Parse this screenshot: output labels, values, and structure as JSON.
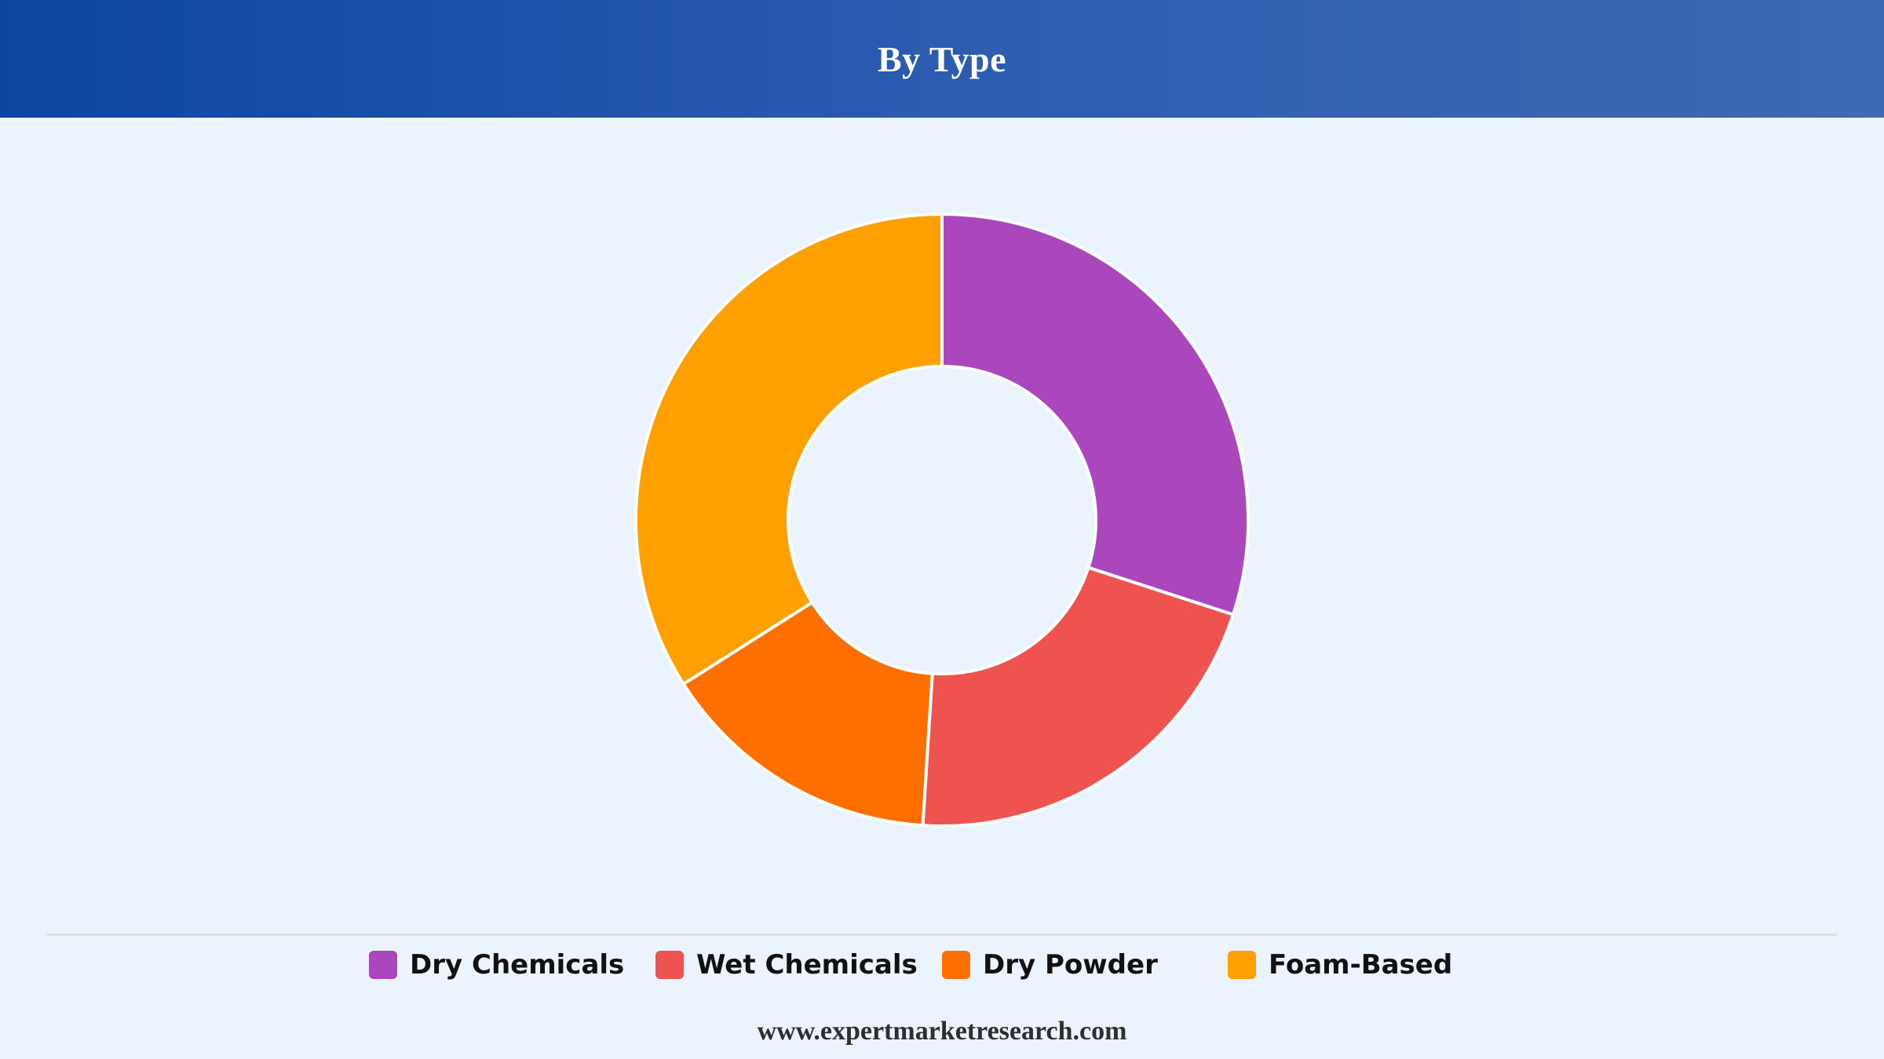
{
  "header": {
    "title": "By Type"
  },
  "chart_data": {
    "type": "pie",
    "variant": "donut",
    "title": "By Type",
    "categories": [
      "Dry Chemicals",
      "Wet Chemicals",
      "Dry Powder",
      "Foam-Based"
    ],
    "values": [
      30,
      21,
      15,
      34
    ],
    "colors": [
      "#ab47bc",
      "#ef5350",
      "#ff6f00",
      "#ffa000"
    ],
    "legend_placement": "bottom",
    "start_angle_deg": 0,
    "direction": "clockwise"
  },
  "legend": {
    "items": [
      {
        "label": "Dry Chemicals",
        "color": "#ab47bc"
      },
      {
        "label": "Wet Chemicals",
        "color": "#ef5350"
      },
      {
        "label": "Dry Powder",
        "color": "#ff6f00"
      },
      {
        "label": "Foam-Based",
        "color": "#ffa000"
      }
    ]
  },
  "footer": {
    "source": "www.expertmarketresearch.com"
  }
}
